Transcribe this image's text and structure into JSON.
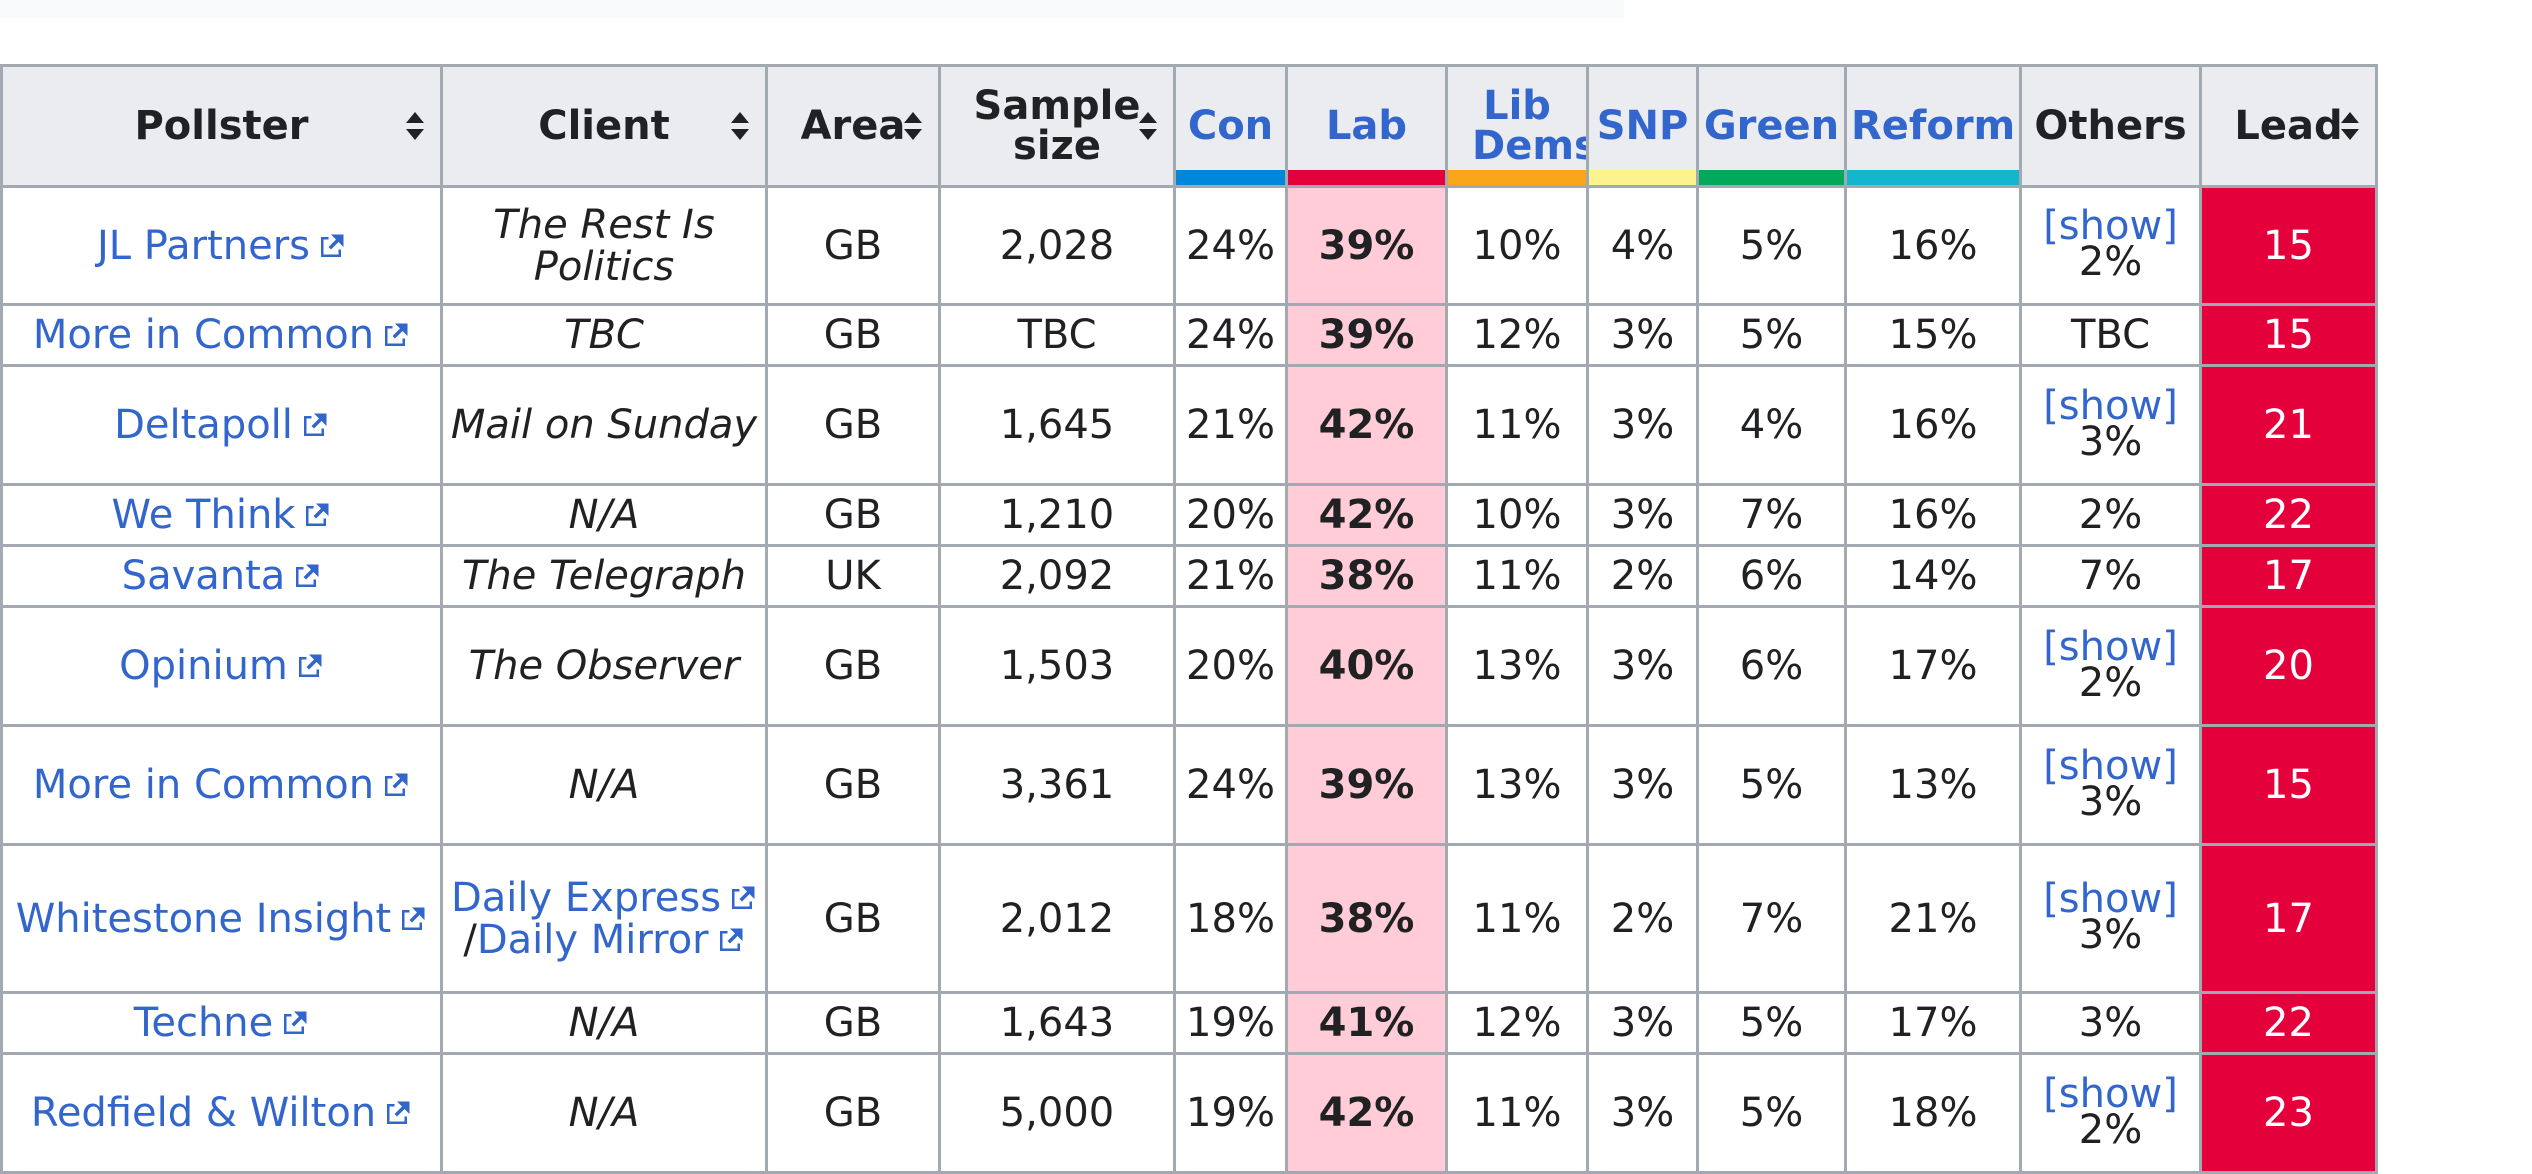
{
  "columns": {
    "pollster": "Pollster",
    "client": "Client",
    "area": "Area",
    "sample_line1": "Sample",
    "sample_line2": "size",
    "others": "Others",
    "lead": "Lead"
  },
  "parties": [
    {
      "label": "Con",
      "color": "#0087dc"
    },
    {
      "label": "Lab",
      "color": "#e4003b"
    },
    {
      "label": "Lib Dems",
      "color": "#faa61a"
    },
    {
      "label": "SNP",
      "color": "#fdf38e"
    },
    {
      "label": "Green",
      "color": "#02a95b"
    },
    {
      "label": "Reform",
      "color": "#12b6cf"
    }
  ],
  "colors": {
    "link": "#3366cc",
    "lab_highlight": "#ffccd7",
    "lead_cell": "#e4003b",
    "header_bg": "#eaecf0",
    "border": "#a2a9b1"
  },
  "show_label": "[show]",
  "rows": [
    {
      "pollster": "JL Partners",
      "client": "The Rest Is Politics",
      "area": "GB",
      "sample": "2,028",
      "con": "24%",
      "lab": "39%",
      "ld": "10%",
      "snp": "4%",
      "green": "5%",
      "reform": "16%",
      "others": "2%",
      "others_show": true,
      "lead": "15"
    },
    {
      "pollster": "More in Common",
      "client": "TBC",
      "area": "GB",
      "sample": "TBC",
      "con": "24%",
      "lab": "39%",
      "ld": "12%",
      "snp": "3%",
      "green": "5%",
      "reform": "15%",
      "others": "TBC",
      "others_show": false,
      "lead": "15"
    },
    {
      "pollster": "Deltapoll",
      "client": "Mail on Sunday",
      "area": "GB",
      "sample": "1,645",
      "con": "21%",
      "lab": "42%",
      "ld": "11%",
      "snp": "3%",
      "green": "4%",
      "reform": "16%",
      "others": "3%",
      "others_show": true,
      "lead": "21"
    },
    {
      "pollster": "We Think",
      "client": "N/A",
      "area": "GB",
      "sample": "1,210",
      "con": "20%",
      "lab": "42%",
      "ld": "10%",
      "snp": "3%",
      "green": "7%",
      "reform": "16%",
      "others": "2%",
      "others_show": false,
      "lead": "22"
    },
    {
      "pollster": "Savanta",
      "client": "The Telegraph",
      "area": "UK",
      "sample": "2,092",
      "con": "21%",
      "lab": "38%",
      "ld": "11%",
      "snp": "2%",
      "green": "6%",
      "reform": "14%",
      "others": "7%",
      "others_show": false,
      "lead": "17"
    },
    {
      "pollster": "Opinium",
      "client": "The Observer",
      "area": "GB",
      "sample": "1,503",
      "con": "20%",
      "lab": "40%",
      "ld": "13%",
      "snp": "3%",
      "green": "6%",
      "reform": "17%",
      "others": "2%",
      "others_show": true,
      "lead": "20"
    },
    {
      "pollster": "More in Common",
      "client": "N/A",
      "area": "GB",
      "sample": "3,361",
      "con": "24%",
      "lab": "39%",
      "ld": "13%",
      "snp": "3%",
      "green": "5%",
      "reform": "13%",
      "others": "3%",
      "others_show": true,
      "lead": "15"
    },
    {
      "pollster": "Whitestone Insight",
      "client": "",
      "client_links": [
        "Daily Express",
        "Daily Mirror"
      ],
      "client_sep": "/",
      "area": "GB",
      "sample": "2,012",
      "con": "18%",
      "lab": "38%",
      "ld": "11%",
      "snp": "2%",
      "green": "7%",
      "reform": "21%",
      "others": "3%",
      "others_show": true,
      "lead": "17"
    },
    {
      "pollster": "Techne",
      "client": "N/A",
      "area": "GB",
      "sample": "1,643",
      "con": "19%",
      "lab": "41%",
      "ld": "12%",
      "snp": "3%",
      "green": "5%",
      "reform": "17%",
      "others": "3%",
      "others_show": false,
      "lead": "22"
    },
    {
      "pollster": "Redfield & Wilton",
      "client": "N/A",
      "area": "GB",
      "sample": "5,000",
      "con": "19%",
      "lab": "42%",
      "ld": "11%",
      "snp": "3%",
      "green": "5%",
      "reform": "18%",
      "others": "2%",
      "others_show": true,
      "lead": "23"
    }
  ]
}
